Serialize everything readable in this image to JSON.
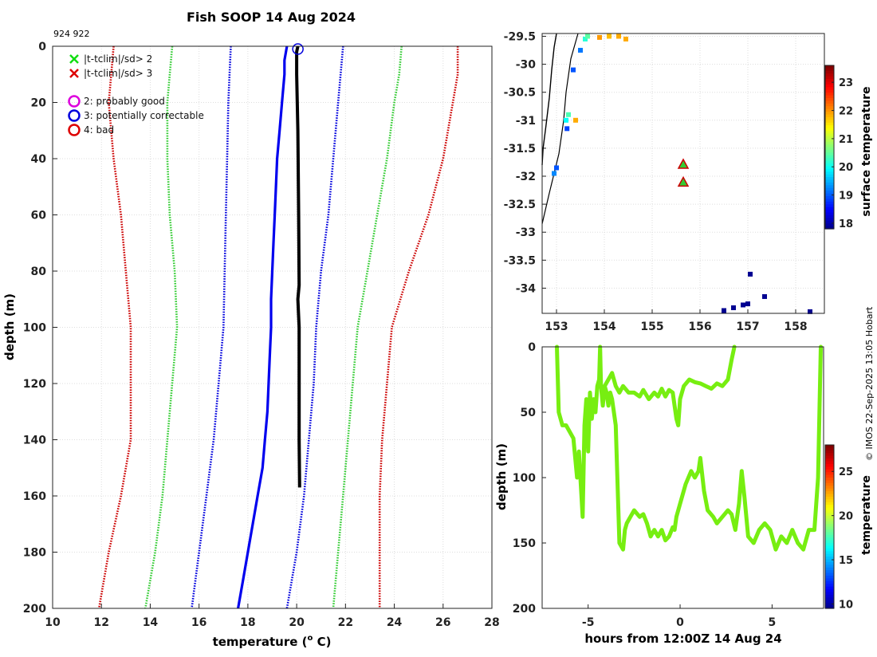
{
  "title": "Fish SOOP 14 Aug 2024",
  "ids": "924 922",
  "credit": "© IMOS 22-Sep-2025 13:05 Hobart",
  "colors": {
    "black": "#000000",
    "blue": "#0000ee",
    "green": "#33cc33",
    "red": "#cc0000",
    "magenta": "#dd00dd",
    "lime": "#77ee11",
    "coast": "#000000"
  },
  "chart_data": [
    {
      "type": "line",
      "name": "temperature-profile",
      "xlabel": "temperature (",
      "xlabel_sup": "o",
      "xlabel_end": " C)",
      "ylabel": "depth (m)",
      "xlim": [
        10,
        28
      ],
      "ylim": [
        0,
        200
      ],
      "xticks": [
        "10",
        "12",
        "14",
        "16",
        "18",
        "20",
        "22",
        "24",
        "26",
        "28"
      ],
      "yticks": [
        "0",
        "20",
        "40",
        "60",
        "80",
        "100",
        "120",
        "140",
        "160",
        "180",
        "200"
      ],
      "legend": [
        {
          "marker": "x",
          "color": "#11dd11",
          "label": "|t-tclim|/sd> 2"
        },
        {
          "marker": "x",
          "color": "#dd0000",
          "label": "|t-tclim|/sd> 3"
        },
        {
          "marker": "o",
          "color": "#dd00dd",
          "label": "2: probably good"
        },
        {
          "marker": "o",
          "color": "#0000dd",
          "label": "3: potentially correctable"
        },
        {
          "marker": "o",
          "color": "#dd0000",
          "label": "4: bad"
        }
      ],
      "flag_marker": {
        "t": 20.05,
        "depth": 1
      },
      "observed": {
        "name": "observed profile",
        "depth": [
          0,
          2,
          10,
          30,
          60,
          85,
          90,
          100,
          120,
          140,
          157
        ],
        "t": [
          20.05,
          20.0,
          20.0,
          20.05,
          20.08,
          20.1,
          20.05,
          20.1,
          20.1,
          20.1,
          20.12
        ]
      },
      "climatology_mean": {
        "name": "climatology mean",
        "depth": [
          0,
          5,
          10,
          20,
          30,
          40,
          50,
          60,
          70,
          80,
          90,
          100,
          110,
          120,
          130,
          140,
          150,
          160,
          170,
          180,
          190,
          200
        ],
        "t": [
          19.6,
          19.5,
          19.5,
          19.4,
          19.3,
          19.2,
          19.15,
          19.1,
          19.05,
          19.0,
          18.95,
          18.95,
          18.9,
          18.85,
          18.8,
          18.7,
          18.6,
          18.4,
          18.2,
          18.0,
          17.8,
          17.6
        ]
      },
      "envelopes": [
        {
          "name": "-2sd",
          "color": "#0000dd",
          "depth": [
            0,
            10,
            20,
            40,
            60,
            80,
            100,
            120,
            140,
            160,
            180,
            200
          ],
          "t": [
            17.3,
            17.25,
            17.2,
            17.15,
            17.1,
            17.05,
            17.0,
            16.8,
            16.6,
            16.3,
            16.0,
            15.7
          ]
        },
        {
          "name": "+2sd",
          "color": "#0000dd",
          "depth": [
            0,
            10,
            20,
            40,
            60,
            80,
            100,
            120,
            140,
            160,
            180,
            200
          ],
          "t": [
            21.9,
            21.8,
            21.7,
            21.5,
            21.3,
            21.0,
            20.8,
            20.7,
            20.5,
            20.3,
            20.0,
            19.6
          ]
        },
        {
          "name": "-4sd",
          "color": "#33cc33",
          "depth": [
            0,
            10,
            20,
            40,
            60,
            80,
            100,
            120,
            140,
            160,
            180,
            200
          ],
          "t": [
            14.9,
            14.8,
            14.7,
            14.7,
            14.8,
            15.0,
            15.1,
            14.9,
            14.7,
            14.5,
            14.2,
            13.8
          ]
        },
        {
          "name": "+4sd",
          "color": "#33cc33",
          "depth": [
            0,
            10,
            20,
            40,
            60,
            80,
            100,
            120,
            140,
            160,
            180,
            200
          ],
          "t": [
            24.3,
            24.2,
            24.0,
            23.7,
            23.3,
            22.9,
            22.5,
            22.3,
            22.1,
            21.9,
            21.7,
            21.5
          ]
        },
        {
          "name": "-6sd",
          "color": "#cc0000",
          "depth": [
            0,
            10,
            20,
            40,
            60,
            80,
            100,
            120,
            140,
            160,
            180,
            200
          ],
          "t": [
            12.5,
            12.4,
            12.3,
            12.5,
            12.8,
            13.0,
            13.2,
            13.2,
            13.2,
            12.8,
            12.3,
            11.9
          ]
        },
        {
          "name": "+6sd",
          "color": "#cc0000",
          "depth": [
            0,
            10,
            20,
            40,
            60,
            80,
            100,
            120,
            140,
            160,
            180,
            200
          ],
          "t": [
            26.6,
            26.6,
            26.4,
            26.0,
            25.4,
            24.6,
            23.9,
            23.7,
            23.5,
            23.4,
            23.4,
            23.4
          ]
        }
      ]
    },
    {
      "type": "heatmap",
      "name": "surface-temperature-map",
      "xlim": [
        152.7,
        158.6
      ],
      "ylim": [
        -34.45,
        -29.45
      ],
      "xticks": [
        "153",
        "154",
        "155",
        "156",
        "157",
        "158"
      ],
      "yticks": [
        "-29.5",
        "-30",
        "-30.5",
        "-31",
        "-31.5",
        "-32",
        "-32.5",
        "-33",
        "-33.5",
        "-34"
      ],
      "colorbar": {
        "label": "surface temperature",
        "ticks": [
          "18",
          "19",
          "20",
          "21",
          "22",
          "23"
        ],
        "range": [
          17.8,
          23.6
        ]
      },
      "coastline": [
        [
          153.0,
          -29.45
        ],
        [
          152.95,
          -29.7
        ],
        [
          152.9,
          -30.1
        ],
        [
          152.85,
          -30.6
        ],
        [
          152.78,
          -31.1
        ],
        [
          152.72,
          -31.5
        ],
        [
          152.7,
          -31.8
        ]
      ],
      "shelf_line": [
        [
          153.45,
          -29.45
        ],
        [
          153.3,
          -29.9
        ],
        [
          153.2,
          -30.5
        ],
        [
          153.15,
          -31.0
        ],
        [
          153.05,
          -31.6
        ],
        [
          152.85,
          -32.3
        ],
        [
          152.7,
          -32.85
        ]
      ],
      "pixels": [
        {
          "lon": 153.6,
          "lat": -29.55,
          "t": 20.2
        },
        {
          "lon": 153.65,
          "lat": -29.5,
          "t": 20.5
        },
        {
          "lon": 153.9,
          "lat": -29.52,
          "t": 22.0
        },
        {
          "lon": 154.1,
          "lat": -29.5,
          "t": 21.8
        },
        {
          "lon": 154.3,
          "lat": -29.5,
          "t": 21.9
        },
        {
          "lon": 154.45,
          "lat": -29.55,
          "t": 21.9
        },
        {
          "lon": 153.2,
          "lat": -31.0,
          "t": 20.0
        },
        {
          "lon": 153.22,
          "lat": -31.15,
          "t": 18.9
        },
        {
          "lon": 153.25,
          "lat": -30.9,
          "t": 20.4
        },
        {
          "lon": 153.4,
          "lat": -31.0,
          "t": 21.9
        },
        {
          "lon": 153.0,
          "lat": -31.85,
          "t": 19.0
        },
        {
          "lon": 152.95,
          "lat": -31.95,
          "t": 19.3
        },
        {
          "lon": 153.35,
          "lat": -30.1,
          "t": 19.0
        },
        {
          "lon": 153.5,
          "lat": -29.75,
          "t": 19.2
        },
        {
          "lon": 156.5,
          "lat": -34.4,
          "t": 17.9
        },
        {
          "lon": 156.7,
          "lat": -34.35,
          "t": 17.9
        },
        {
          "lon": 156.9,
          "lat": -34.3,
          "t": 17.9
        },
        {
          "lon": 157.0,
          "lat": -34.28,
          "t": 17.9
        },
        {
          "lon": 157.05,
          "lat": -33.75,
          "t": 17.9
        },
        {
          "lon": 157.35,
          "lat": -34.15,
          "t": 17.9
        },
        {
          "lon": 158.3,
          "lat": -34.42,
          "t": 17.9
        }
      ],
      "stations": [
        {
          "lon": 155.65,
          "lat": -31.8
        },
        {
          "lon": 155.65,
          "lat": -32.12
        }
      ]
    },
    {
      "type": "line",
      "name": "depth-time",
      "xlabel": "hours from 12:00Z 14 Aug 24",
      "ylabel": "depth (m)",
      "xlim": [
        -7.5,
        7.8
      ],
      "ylim": [
        0,
        200
      ],
      "xticks": [
        "-5",
        "0",
        "5"
      ],
      "yticks": [
        "0",
        "50",
        "100",
        "150",
        "200"
      ],
      "colorbar": {
        "label": "temperature",
        "ticks": [
          "10",
          "15",
          "20",
          "25"
        ],
        "range": [
          9.5,
          28
        ]
      },
      "series": [
        {
          "name": "path",
          "color": "#77ee11",
          "x": [
            -6.7,
            -6.6,
            -6.4,
            -6.2,
            -5.8,
            -5.6,
            -5.5,
            -5.3,
            -5.2,
            -5.1,
            -5.0,
            -4.9,
            -4.8,
            -4.7,
            -4.6,
            -4.5,
            -4.4,
            -4.35,
            -4.3,
            -4.2,
            -4.1,
            -4.0,
            -3.9,
            -3.8,
            -3.7,
            -3.5,
            -3.3,
            -3.1,
            -3.0,
            -2.9,
            -2.7,
            -2.5,
            -2.2,
            -2.0,
            -1.8,
            -1.6,
            -1.4,
            -1.2,
            -1.0,
            -0.8,
            -0.6,
            -0.4,
            -0.3,
            -0.2,
            0.0,
            0.3,
            0.6,
            0.8,
            1.0,
            1.1,
            1.3,
            1.5,
            1.8,
            2.0,
            2.3,
            2.6,
            2.8,
            3.0,
            3.2,
            3.35,
            3.5,
            3.7,
            4.0,
            4.3,
            4.6,
            4.9,
            5.2,
            5.5,
            5.8,
            6.1,
            6.4,
            6.7,
            7.0,
            7.3,
            7.5,
            7.65
          ],
          "y": [
            0,
            50,
            60,
            60,
            70,
            100,
            80,
            130,
            60,
            40,
            80,
            35,
            55,
            40,
            50,
            30,
            25,
            0,
            30,
            45,
            30,
            35,
            45,
            35,
            40,
            60,
            150,
            155,
            140,
            135,
            130,
            125,
            130,
            128,
            135,
            145,
            140,
            145,
            140,
            148,
            145,
            138,
            140,
            130,
            120,
            105,
            95,
            100,
            95,
            85,
            110,
            125,
            130,
            135,
            130,
            125,
            128,
            140,
            120,
            95,
            115,
            145,
            150,
            140,
            135,
            140,
            155,
            145,
            150,
            140,
            150,
            155,
            140,
            140,
            100,
            0
          ]
        },
        {
          "name": "shallow path",
          "color": "#77ee11",
          "x": [
            -4.1,
            -3.9,
            -3.7,
            -3.5,
            -3.3,
            -3.1,
            -2.8,
            -2.5,
            -2.2,
            -2.0,
            -1.7,
            -1.4,
            -1.2,
            -1.0,
            -0.8,
            -0.6,
            -0.4,
            -0.2,
            -0.1,
            0.0,
            0.2,
            0.5,
            0.8,
            1.1,
            1.4,
            1.7,
            2.0,
            2.3,
            2.6,
            2.8,
            2.95
          ],
          "y": [
            30,
            25,
            20,
            30,
            35,
            30,
            35,
            35,
            38,
            33,
            40,
            35,
            38,
            32,
            38,
            33,
            35,
            55,
            60,
            40,
            30,
            25,
            27,
            28,
            30,
            32,
            28,
            30,
            25,
            10,
            0
          ]
        }
      ]
    }
  ]
}
